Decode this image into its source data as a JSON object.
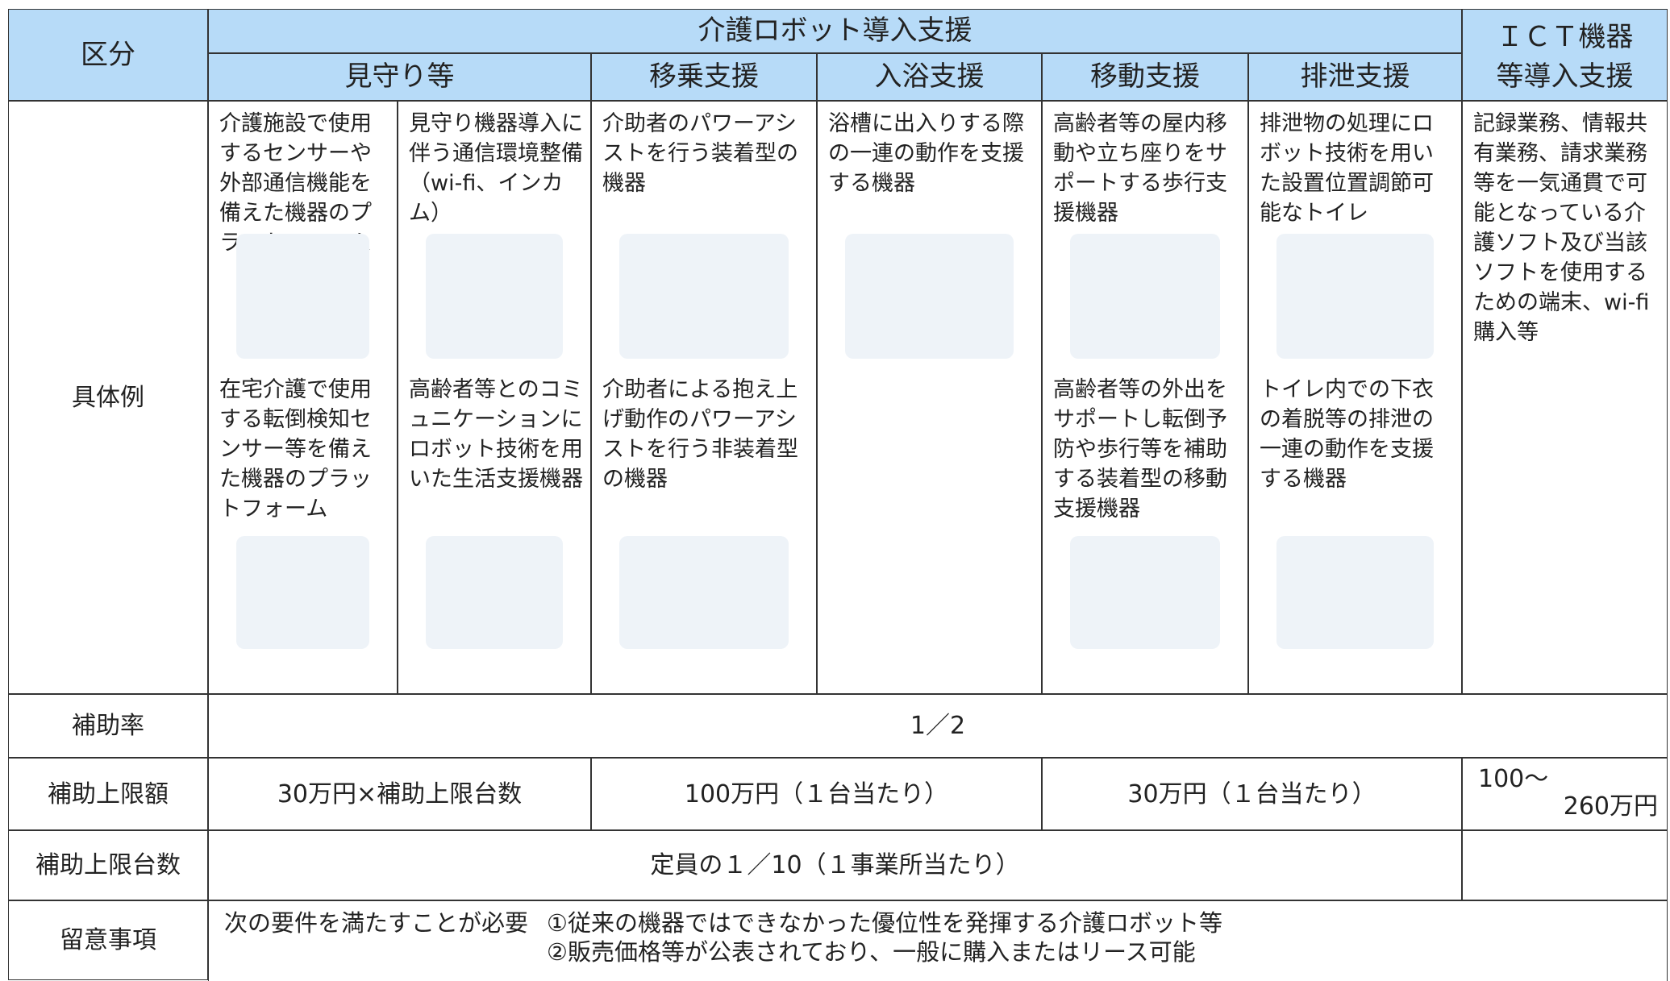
{
  "header": {
    "category": "区分",
    "robot_group": "介護ロボット導入支援",
    "columns": [
      "見守り等",
      "移乗支援",
      "入浴支援",
      "移動支援",
      "排泄支援"
    ],
    "ict": [
      "ＩＣＴ機器",
      "等導入支援"
    ]
  },
  "rows": {
    "examples": "具体例",
    "rate": "補助率",
    "limit": "補助上限額",
    "count": "補助上限台数",
    "notes": "留意事項"
  },
  "examples": {
    "watch_a": [
      "介護施設で使用するセンサーや外部通信機能を備えた機器のプラットフォーム",
      "在宅介護で使用する転倒検知センサー等を備えた機器のプラットフォーム"
    ],
    "watch_b": [
      "見守り機器導入に伴う通信環境整備（wi-fi、インカム）",
      "高齢者等とのコミュニケーションにロボット技術を用いた生活支援機器"
    ],
    "transfer": [
      "介助者のパワーアシストを行う装着型の機器",
      "介助者による抱え上げ動作のパワーアシストを行う非装着型の機器"
    ],
    "bath": [
      "浴槽に出入りする際の一連の動作を支援する機器"
    ],
    "mobility": [
      "高齢者等の屋内移動や立ち座りをサポートする歩行支援機器",
      "高齢者等の外出をサポートし転倒予防や歩行等を補助する装着型の移動支援機器"
    ],
    "excretion": [
      "排泄物の処理にロボット技術を用いた設置位置調節可能なトイレ",
      "トイレ内での下衣の着脱等の排泄の一連の動作を支援する機器"
    ],
    "ict": "記録業務、情報共有業務、請求業務等を一気通貫で可能となっている介護ソフト及び当該ソフトを使用するための端末、wi-fi購入等"
  },
  "rate": "1／2",
  "limit": [
    "30万円×補助上限台数",
    "100万円（１台当たり）",
    "30万円（１台当たり）",
    [
      "100～",
      "260万円"
    ]
  ],
  "count": "定員の１／10（１事業所当たり）",
  "notes": {
    "intro": "次の要件を満たすことが必要",
    "items": [
      "①従来の機器ではできなかった優位性を発揮する介護ロボット等",
      "②販売価格等が公表されており、一般に購入またはリース可能"
    ]
  }
}
